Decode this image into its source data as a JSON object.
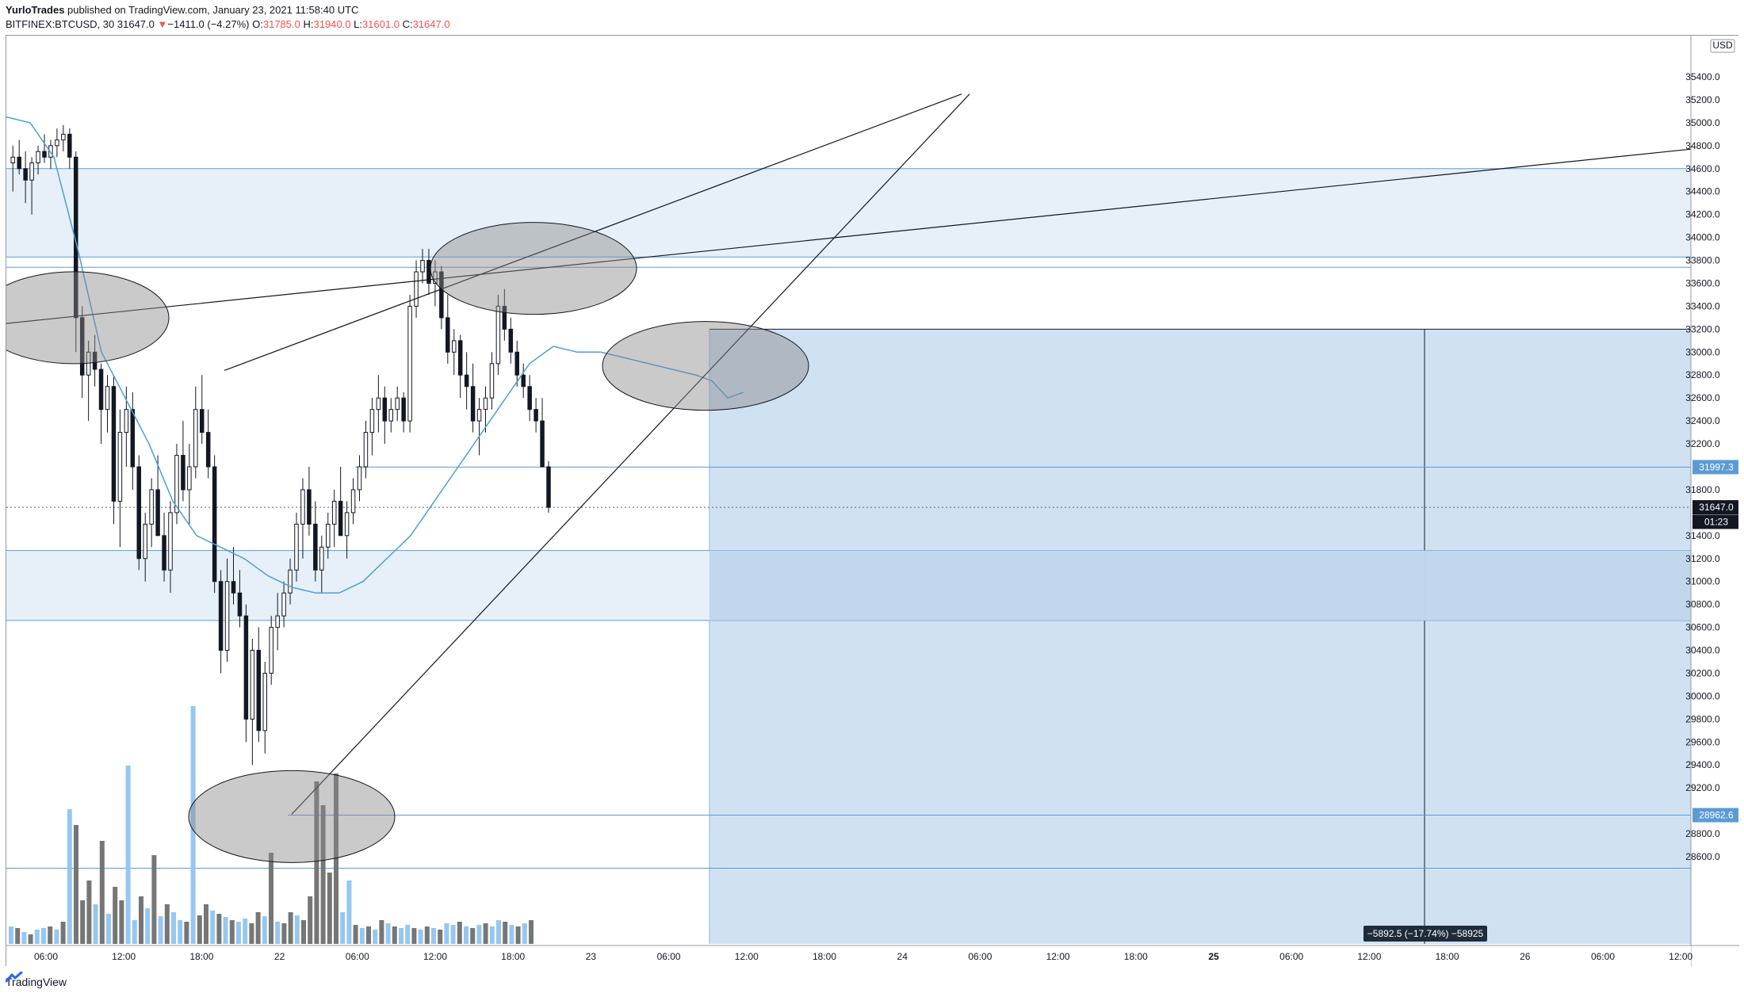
{
  "header": {
    "author": "YurloTrades",
    "published": "published on TradingView.com, January 23, 2021 11:58:40 UTC",
    "symbol": "BITFINEX:BTCUSD, 30",
    "last": "31647.0",
    "change_arrow": "▼",
    "change": "−1411.0 (−4.27%)",
    "o_label": "O:",
    "o": "31785.0",
    "h_label": "H:",
    "h": "31940.0",
    "l_label": "L:",
    "l": "31601.0",
    "c_label": "C:",
    "c": "31647.0"
  },
  "footer": {
    "brand": "TradingView",
    "logo_icon": "tradingview-logo-icon"
  },
  "colors": {
    "zone_fill": "#e3edf7",
    "zone_line": "#5b9bd5",
    "projection_fill": "#d0e1f2",
    "candle_up": "#ffffff",
    "candle_down": "#131722",
    "volume_up": "#90c4ef",
    "volume_down": "#6f6f6f",
    "ma_line": "#4a9fd8",
    "red": "#ef5350"
  },
  "price_axis": {
    "currency": "USD",
    "ticks": [
      "35400.0",
      "35200.0",
      "35000.0",
      "34800.0",
      "34600.0",
      "34400.0",
      "34200.0",
      "34000.0",
      "33800.0",
      "33600.0",
      "33400.0",
      "33200.0",
      "33000.0",
      "32800.0",
      "32600.0",
      "32400.0",
      "32200.0",
      "31800.0",
      "31400.0",
      "31200.0",
      "31000.0",
      "30800.0",
      "30600.0",
      "30400.0",
      "30200.0",
      "30000.0",
      "29800.0",
      "29600.0",
      "29400.0",
      "29200.0",
      "28800.0",
      "28600.0"
    ],
    "labels": [
      {
        "text": "31997.3",
        "value": 31997.3,
        "style": "blue"
      },
      {
        "text": "31647.0",
        "value": 31647,
        "style": "dark"
      },
      {
        "text": "01:23",
        "value": 31520,
        "style": "dark"
      },
      {
        "text": "28962.6",
        "value": 28962.6,
        "style": "blue"
      }
    ]
  },
  "time_axis": {
    "ticks": [
      {
        "label": "06:00",
        "bold": false
      },
      {
        "label": "12:00",
        "bold": false
      },
      {
        "label": "18:00",
        "bold": false
      },
      {
        "label": "22",
        "bold": false
      },
      {
        "label": "06:00",
        "bold": false
      },
      {
        "label": "12:00",
        "bold": false
      },
      {
        "label": "18:00",
        "bold": false
      },
      {
        "label": "23",
        "bold": false
      },
      {
        "label": "06:00",
        "bold": false
      },
      {
        "label": "12:00",
        "bold": false
      },
      {
        "label": "18:00",
        "bold": false
      },
      {
        "label": "24",
        "bold": false
      },
      {
        "label": "06:00",
        "bold": false
      },
      {
        "label": "12:00",
        "bold": false
      },
      {
        "label": "18:00",
        "bold": false
      },
      {
        "label": "25",
        "bold": true
      },
      {
        "label": "06:00",
        "bold": false
      },
      {
        "label": "12:00",
        "bold": false
      },
      {
        "label": "18:00",
        "bold": false
      },
      {
        "label": "26",
        "bold": false
      },
      {
        "label": "06:00",
        "bold": false
      },
      {
        "label": "12:00",
        "bold": false
      }
    ]
  },
  "measure_label": "−5892.5 (−17.74%) −58925",
  "chart_data": {
    "type": "candlestick",
    "symbol": "BITFINEX:BTCUSD",
    "interval": "30",
    "y_range": [
      28460,
      35600
    ],
    "zones": [
      {
        "from": 33830,
        "to": 34600
      },
      {
        "from": 30660,
        "to": 31270
      }
    ],
    "horizontal_levels": [
      33740,
      31997.3,
      28962.6,
      28500
    ],
    "projection": {
      "top": 33200,
      "bottom": 28500,
      "label": "−5892.5 (−17.74%) −58925"
    },
    "last_price": 31647.0
  }
}
